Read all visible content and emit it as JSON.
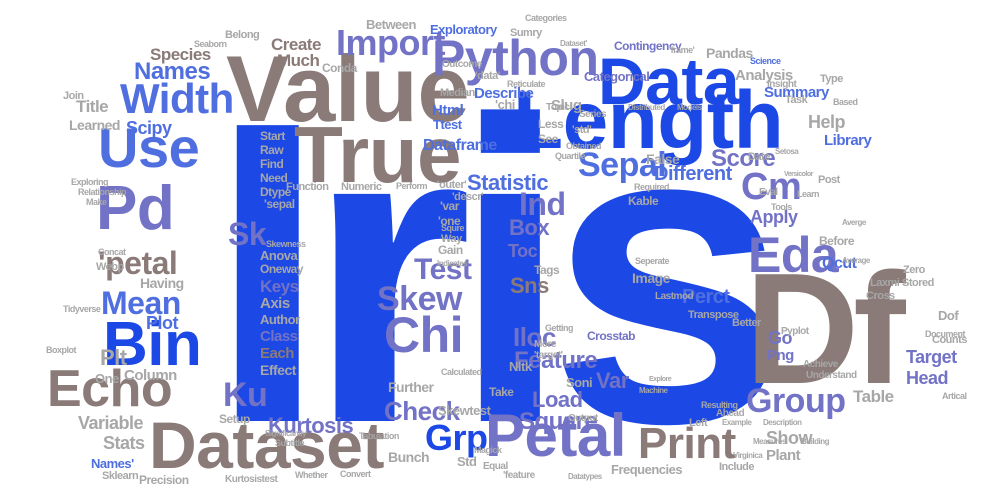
{
  "words": [
    "Iris",
    "Df",
    "Length",
    "Value",
    "True",
    "Pd",
    "Dataset",
    "Data",
    "Python",
    "Petal",
    "Use",
    "Bin",
    "Echo",
    "Width",
    "Import",
    "Chi",
    "Eda",
    "'petal",
    "Sepal",
    "Mean",
    "Print",
    "Group",
    "Skew",
    "Grp",
    "Names",
    "Score",
    "Test",
    "Cm",
    "Ind",
    "Statistic",
    "Ku",
    "Sk",
    "Plot",
    "Iloc",
    "Kurtosis",
    "Check",
    "Box",
    "Feature",
    "Load",
    "Sns",
    "Square",
    "Var",
    "Different",
    "Create",
    "Help",
    "Library",
    "Apply",
    "Analysis",
    "Summary",
    "Perct",
    "Target",
    "Head",
    "Table",
    "Show",
    "Plant",
    "Stats",
    "Variable",
    "Column",
    "Plt",
    "Scipy",
    "Learned",
    "Title",
    "Join",
    "Species",
    "Much",
    "Having",
    "Keys",
    "Axis",
    "Author",
    "Class",
    "Each",
    "Effect",
    "Anova",
    "Oneway",
    "Setup",
    "Further",
    "Take",
    "Skewtest",
    "Bunch",
    "Std",
    "Toc",
    "Tags",
    "Image",
    "Gain",
    "Describe",
    "Html",
    "Ttest",
    "Slug",
    "Categorical",
    "Contingency",
    "Pandas",
    "Exploratory",
    "Between",
    "Sumry",
    "Categories",
    "Conda",
    "Median",
    "Outcome",
    "Reticulate",
    "'chi",
    "'data'",
    "Series",
    "Less",
    "See",
    "Topic",
    "Seaborn",
    "Belong",
    "Dataframe",
    "Start",
    "Raw",
    "Find",
    "Need",
    "Dtype",
    "Function",
    "Numeric",
    "Perform",
    "'outer'",
    "'descr'",
    "Obtained",
    "Date",
    "Eval",
    "Post",
    "Qcut",
    "Before",
    "Zero",
    "Stored",
    "Dof",
    "Counts",
    "Go",
    "Png",
    "Transpose",
    "Better",
    "Cross",
    "Laxmi",
    "Lastmod",
    "Tools",
    "Insight",
    "Task",
    "Type",
    "Science",
    "Based",
    "Models",
    "Distributed",
    "False",
    "Skewness",
    "'sepal",
    "'one",
    "'var",
    "Way",
    "Squre",
    "Indicates",
    "Seperate",
    "Crosstab",
    "Getting",
    "More",
    "'target'",
    "Nltk",
    "Soni",
    "Calculated",
    "Equal",
    "'feature",
    "Output",
    "Resulting",
    "Pyplot",
    "Achieve",
    "Understand",
    "Document",
    "Artical",
    "Left",
    "Include",
    "Frequencies",
    "Datatypes",
    "Convert",
    "Whether",
    "Kurtosistest",
    "Sklearn",
    "Precision",
    "Names'",
    "Webp",
    "Concat",
    "Tidyverse",
    "Boxplot",
    "Magick",
    "Subtitle",
    "Tabulation",
    "Significantly",
    "Make",
    "Relationship",
    "Exploring",
    "Required",
    "Kable",
    "Quartile",
    "Example",
    "Description",
    "Ahead",
    "Virginica",
    "Versicolor",
    "Setosa",
    "Machine",
    "Explore",
    "Measures",
    "Building",
    "'std'",
    "'frame'",
    "Dataset'",
    "One",
    "Learn",
    "Average",
    "Averge"
  ],
  "colors": {
    "blue": "#1c48e6",
    "mid": "#4f6fe0",
    "lavender": "#7272c6",
    "taupe": "#8a7a78",
    "grey": "#a7a7a7"
  }
}
